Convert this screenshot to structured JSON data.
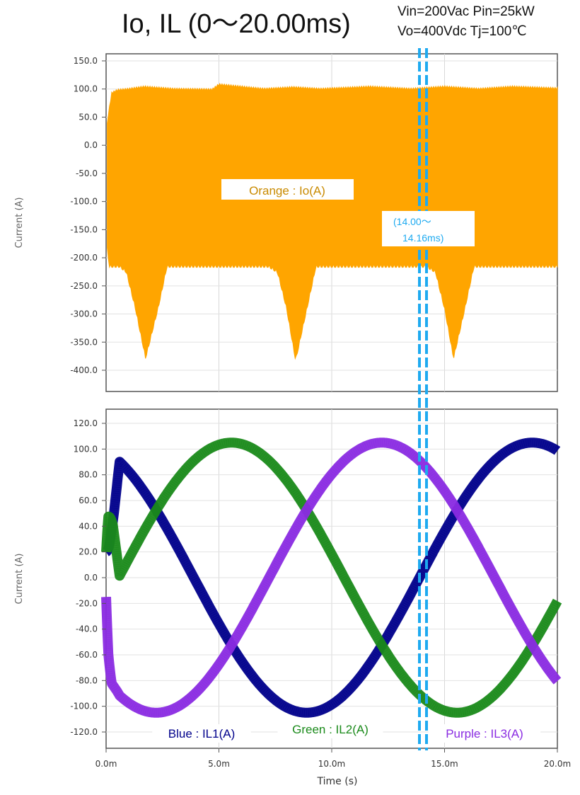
{
  "title": "Io, IL (0～20.00ms)",
  "conditions": {
    "line1": "Vin=200Vac Pin=25kW",
    "line2": "Vo=400Vdc Tj=100℃"
  },
  "cursor_label": {
    "line1": "(14.00～",
    "line2": "14.16ms)"
  },
  "chart_data": [
    {
      "type": "area",
      "ylabel": "Current (A)",
      "ylim": [
        -425,
        150
      ],
      "yticks": [
        "150.0",
        "100.0",
        "50.0",
        "0.0",
        "-50.0",
        "-100.0",
        "-150.0",
        "-200.0",
        "-250.0",
        "-300.0",
        "-350.0",
        "-400.0"
      ],
      "ytick_values": [
        150,
        100,
        50,
        0,
        -50,
        -100,
        -150,
        -200,
        -250,
        -300,
        -350,
        -400
      ],
      "xlim": [
        0,
        20
      ],
      "grid": true,
      "series": [
        {
          "name": "Orange : Io(A)",
          "color": "#ffa500",
          "note_upper_envelope_ms": [
            [
              0,
              20
            ],
            [
              0.1,
              55
            ],
            [
              0.25,
              93
            ],
            [
              0.5,
              98
            ],
            [
              1,
              100
            ],
            [
              1.7,
              104
            ],
            [
              3,
              100
            ],
            [
              4.7,
              99
            ],
            [
              5,
              108
            ],
            [
              7,
              100
            ],
            [
              8.3,
              103
            ],
            [
              9.5,
              100
            ],
            [
              11.7,
              104
            ],
            [
              13.5,
              100
            ],
            [
              15,
              104
            ],
            [
              16.5,
              100
            ],
            [
              18,
              104
            ],
            [
              20,
              101
            ]
          ],
          "note_lower_envelope_ms": [
            [
              0,
              -170
            ],
            [
              0.15,
              -215
            ],
            [
              0.6,
              -215
            ],
            [
              0.9,
              -225
            ],
            [
              1.3,
              -290
            ],
            [
              1.75,
              -378
            ],
            [
              2.3,
              -290
            ],
            [
              2.7,
              -215
            ],
            [
              5,
              -215
            ],
            [
              7.2,
              -215
            ],
            [
              7.6,
              -225
            ],
            [
              8.0,
              -290
            ],
            [
              8.4,
              -382
            ],
            [
              8.9,
              -290
            ],
            [
              9.3,
              -215
            ],
            [
              11.7,
              -215
            ],
            [
              14.2,
              -215
            ],
            [
              14.6,
              -225
            ],
            [
              15.0,
              -290
            ],
            [
              15.4,
              -378
            ],
            [
              15.9,
              -290
            ],
            [
              16.3,
              -215
            ],
            [
              20,
              -215
            ]
          ]
        }
      ]
    },
    {
      "type": "line",
      "ylabel": "Current (A)",
      "xlabel": "Time (s)",
      "ylim": [
        -128,
        128
      ],
      "yticks": [
        "120.0",
        "100.0",
        "80.0",
        "60.0",
        "40.0",
        "20.0",
        "0.0",
        "-20.0",
        "-40.0",
        "-60.0",
        "-80.0",
        "-100.0",
        "-120.0"
      ],
      "ytick_values": [
        120,
        100,
        80,
        60,
        40,
        20,
        0,
        -20,
        -40,
        -60,
        -80,
        -100,
        -120
      ],
      "xticks": [
        "0.0m",
        "5.0m",
        "10.0m",
        "15.0m",
        "20.0m"
      ],
      "xtick_values": [
        0,
        5,
        10,
        15,
        20
      ],
      "xlim": [
        0,
        20
      ],
      "grid": true,
      "series": [
        {
          "name": "Blue : IL1(A)",
          "color": "#00008b",
          "amplitude": 105,
          "phase_deg": 110,
          "period_ms": 20
        },
        {
          "name": "Green : IL2(A)",
          "color": "#1a8a1a",
          "amplitude": 105,
          "phase_deg": -10,
          "period_ms": 20
        },
        {
          "name": "Purple : IL3(A)",
          "color": "#8a2be2",
          "amplitude": 105,
          "phase_deg": 230,
          "period_ms": 20
        }
      ]
    }
  ],
  "cursor": {
    "t1_ms": 14.0,
    "t2_ms": 14.16,
    "color": "#1eaaf0"
  }
}
